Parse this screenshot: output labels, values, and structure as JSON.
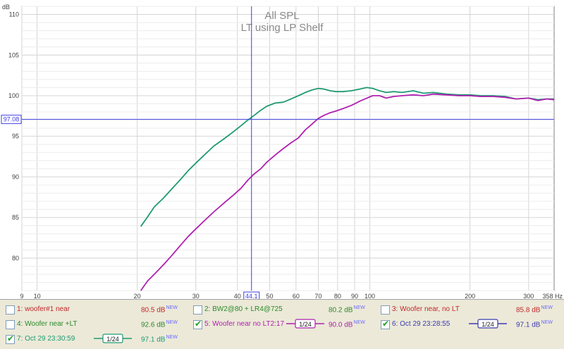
{
  "chart_data": {
    "type": "line",
    "title": "All SPL",
    "subtitle": "LT using LP Shelf",
    "xscale": "log",
    "xlim": [
      9,
      358
    ],
    "ylim": [
      76,
      111
    ],
    "x_ticks": [
      9,
      10,
      20,
      30,
      40,
      50,
      60,
      70,
      80,
      90,
      100,
      200,
      300
    ],
    "x_tick_labels": [
      "9",
      "10",
      "20",
      "30",
      "40",
      "50",
      "60",
      "70",
      "80",
      "90",
      "100",
      "200",
      "300"
    ],
    "x_end_label": "358 Hz",
    "y_ticks": [
      80,
      85,
      90,
      95,
      100,
      105,
      110
    ],
    "y_tick_labels": [
      "80",
      "85",
      "90",
      "95",
      "100",
      "105",
      "110"
    ],
    "y_unit": "dB",
    "cursor": {
      "x": 44.1,
      "y": 97.08,
      "x_label": "44.1",
      "y_label": "97.08"
    },
    "grid": true,
    "series": [
      {
        "name": "4: Woofer near +LT",
        "color": "#1f9a73",
        "points": [
          [
            20.5,
            83.9
          ],
          [
            21.5,
            85.1
          ],
          [
            22.5,
            86.3
          ],
          [
            24,
            87.4
          ],
          [
            25.5,
            88.6
          ],
          [
            27,
            89.7
          ],
          [
            28.5,
            90.8
          ],
          [
            30,
            91.7
          ],
          [
            32,
            92.8
          ],
          [
            34,
            93.8
          ],
          [
            36.5,
            94.7
          ],
          [
            39,
            95.6
          ],
          [
            41,
            96.3
          ],
          [
            43,
            97.0
          ],
          [
            45,
            97.6
          ],
          [
            47,
            98.2
          ],
          [
            49,
            98.7
          ],
          [
            52,
            99.1
          ],
          [
            55,
            99.2
          ],
          [
            58,
            99.6
          ],
          [
            61,
            100.0
          ],
          [
            64,
            100.4
          ],
          [
            67,
            100.7
          ],
          [
            70,
            100.9
          ],
          [
            73,
            100.8
          ],
          [
            76,
            100.6
          ],
          [
            79,
            100.5
          ],
          [
            83,
            100.5
          ],
          [
            88,
            100.6
          ],
          [
            93,
            100.8
          ],
          [
            98,
            101.0
          ],
          [
            102,
            100.9
          ],
          [
            107,
            100.6
          ],
          [
            112,
            100.4
          ],
          [
            118,
            100.5
          ],
          [
            125,
            100.4
          ],
          [
            135,
            100.6
          ],
          [
            145,
            100.3
          ],
          [
            155,
            100.4
          ],
          [
            170,
            100.2
          ],
          [
            185,
            100.1
          ],
          [
            200,
            100.1
          ],
          [
            215,
            100.0
          ],
          [
            235,
            100.0
          ],
          [
            255,
            99.9
          ],
          [
            275,
            99.6
          ],
          [
            300,
            99.7
          ],
          [
            320,
            99.5
          ],
          [
            340,
            99.6
          ],
          [
            358,
            99.6
          ]
        ]
      },
      {
        "name": "5: Woofer near no LT2:17",
        "color": "#b020b0",
        "points": [
          [
            20.5,
            76.0
          ],
          [
            21.5,
            77.2
          ],
          [
            22.5,
            78.0
          ],
          [
            24,
            79.2
          ],
          [
            25.5,
            80.4
          ],
          [
            27,
            81.6
          ],
          [
            28.5,
            82.7
          ],
          [
            30,
            83.6
          ],
          [
            32,
            84.7
          ],
          [
            34,
            85.7
          ],
          [
            36.5,
            86.8
          ],
          [
            39,
            87.8
          ],
          [
            41,
            88.6
          ],
          [
            43,
            89.6
          ],
          [
            45,
            90.4
          ],
          [
            47,
            91.0
          ],
          [
            49,
            91.8
          ],
          [
            52,
            92.7
          ],
          [
            55,
            93.5
          ],
          [
            58,
            94.2
          ],
          [
            61,
            94.8
          ],
          [
            64,
            95.8
          ],
          [
            67,
            96.5
          ],
          [
            70,
            97.2
          ],
          [
            73,
            97.6
          ],
          [
            76,
            97.9
          ],
          [
            79,
            98.1
          ],
          [
            83,
            98.4
          ],
          [
            88,
            98.8
          ],
          [
            93,
            99.3
          ],
          [
            98,
            99.7
          ],
          [
            102,
            100.0
          ],
          [
            107,
            100.0
          ],
          [
            112,
            99.7
          ],
          [
            118,
            99.9
          ],
          [
            125,
            100.0
          ],
          [
            135,
            100.1
          ],
          [
            145,
            100.0
          ],
          [
            155,
            100.2
          ],
          [
            170,
            100.1
          ],
          [
            185,
            100.0
          ],
          [
            200,
            100.0
          ],
          [
            215,
            99.9
          ],
          [
            235,
            99.9
          ],
          [
            255,
            99.8
          ],
          [
            275,
            99.6
          ],
          [
            300,
            99.7
          ],
          [
            320,
            99.4
          ],
          [
            340,
            99.6
          ],
          [
            358,
            99.5
          ]
        ]
      }
    ]
  },
  "legend": [
    {
      "label": "1: woofer#1 near",
      "value": "80.5 dB",
      "badge": "NEW",
      "checked": false,
      "color": "#c0282a",
      "smoothing": ""
    },
    {
      "label": "2: BW2@80 + LR4@725",
      "value": "80.2 dB",
      "badge": "NEW",
      "checked": false,
      "color": "#2a8a2a",
      "smoothing": ""
    },
    {
      "label": "3: Woofer near, no LT",
      "value": "85.8 dB",
      "badge": "NEW",
      "checked": false,
      "color": "#c0282a",
      "smoothing": ""
    },
    {
      "label": "4: Woofer near +LT",
      "value": "92.6 dB",
      "badge": "NEW",
      "checked": false,
      "color": "#2a8a2a",
      "smoothing": ""
    },
    {
      "label": "5: Woofer near no LT2:17",
      "value": "90.0 dB",
      "badge": "NEW",
      "checked": true,
      "color": "#b020b0",
      "smoothing": "1/24"
    },
    {
      "label": "6: Oct 29 23:28:55",
      "value": "97.1 dB",
      "badge": "NEW",
      "checked": true,
      "color": "#3b3bb0",
      "smoothing": "1/24"
    },
    {
      "label": "7: Oct 29 23:30:59",
      "value": "97.1 dB",
      "badge": "NEW",
      "checked": true,
      "color": "#1f9a73",
      "smoothing": "1/24"
    }
  ],
  "colors": {
    "grid": "#d4d4d4",
    "cursor": "#3f3fe0",
    "axis_text": "#404040",
    "title": "#8a8a8a"
  }
}
